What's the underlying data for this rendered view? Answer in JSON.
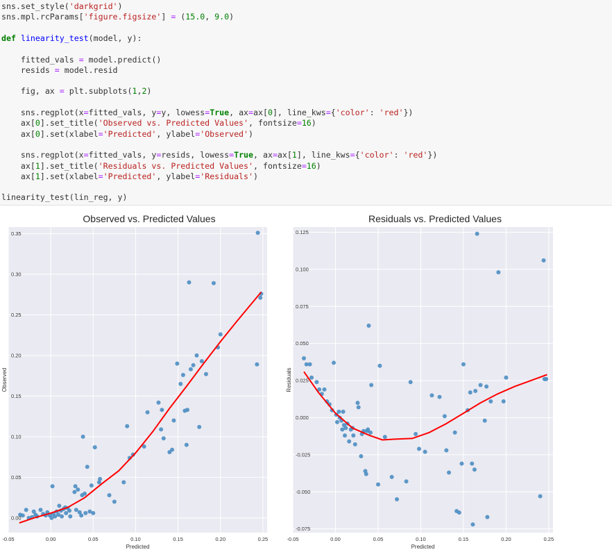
{
  "code_lines": [
    [
      [
        "t",
        "sns.set_style("
      ],
      [
        "s",
        "'darkgrid'"
      ],
      [
        "t",
        ")"
      ]
    ],
    [
      [
        "t",
        "sns.mpl.rcParams["
      ],
      [
        "s",
        "'figure.figsize'"
      ],
      [
        "t",
        "] "
      ],
      [
        "o",
        "="
      ],
      [
        "t",
        " ("
      ],
      [
        "n",
        "15.0"
      ],
      [
        "t",
        ", "
      ],
      [
        "n",
        "9.0"
      ],
      [
        "t",
        ")"
      ]
    ],
    [],
    [
      [
        "k",
        "def"
      ],
      [
        "t",
        " "
      ],
      [
        "f",
        "linearity_test"
      ],
      [
        "t",
        "(model, y):"
      ]
    ],
    [],
    [
      [
        "t",
        "    fitted_vals "
      ],
      [
        "o",
        "="
      ],
      [
        "t",
        " model.predict()"
      ]
    ],
    [
      [
        "t",
        "    resids "
      ],
      [
        "o",
        "="
      ],
      [
        "t",
        " model.resid"
      ]
    ],
    [],
    [
      [
        "t",
        "    fig, ax "
      ],
      [
        "o",
        "="
      ],
      [
        "t",
        " plt.subplots("
      ],
      [
        "n",
        "1"
      ],
      [
        "t",
        ","
      ],
      [
        "n",
        "2"
      ],
      [
        "t",
        ")"
      ]
    ],
    [],
    [
      [
        "t",
        "    sns.regplot(x"
      ],
      [
        "o",
        "="
      ],
      [
        "t",
        "fitted_vals, y"
      ],
      [
        "o",
        "="
      ],
      [
        "t",
        "y, lowess"
      ],
      [
        "o",
        "="
      ],
      [
        "k",
        "True"
      ],
      [
        "t",
        ", ax"
      ],
      [
        "o",
        "="
      ],
      [
        "t",
        "ax["
      ],
      [
        "n",
        "0"
      ],
      [
        "t",
        "], line_kws"
      ],
      [
        "o",
        "="
      ],
      [
        "t",
        "{"
      ],
      [
        "s",
        "'color'"
      ],
      [
        "t",
        ": "
      ],
      [
        "s",
        "'red'"
      ],
      [
        "t",
        "})"
      ]
    ],
    [
      [
        "t",
        "    ax["
      ],
      [
        "n",
        "0"
      ],
      [
        "t",
        "].set_title("
      ],
      [
        "s",
        "'Observed vs. Predicted Values'"
      ],
      [
        "t",
        ", fontsize"
      ],
      [
        "o",
        "="
      ],
      [
        "n",
        "16"
      ],
      [
        "t",
        ")"
      ]
    ],
    [
      [
        "t",
        "    ax["
      ],
      [
        "n",
        "0"
      ],
      [
        "t",
        "].set(xlabel"
      ],
      [
        "o",
        "="
      ],
      [
        "s",
        "'Predicted'"
      ],
      [
        "t",
        ", ylabel"
      ],
      [
        "o",
        "="
      ],
      [
        "s",
        "'Observed'"
      ],
      [
        "t",
        ")"
      ]
    ],
    [],
    [
      [
        "t",
        "    sns.regplot(x"
      ],
      [
        "o",
        "="
      ],
      [
        "t",
        "fitted_vals, y"
      ],
      [
        "o",
        "="
      ],
      [
        "t",
        "resids, lowess"
      ],
      [
        "o",
        "="
      ],
      [
        "k",
        "True"
      ],
      [
        "t",
        ", ax"
      ],
      [
        "o",
        "="
      ],
      [
        "t",
        "ax["
      ],
      [
        "n",
        "1"
      ],
      [
        "t",
        "], line_kws"
      ],
      [
        "o",
        "="
      ],
      [
        "t",
        "{"
      ],
      [
        "s",
        "'color'"
      ],
      [
        "t",
        ": "
      ],
      [
        "s",
        "'red'"
      ],
      [
        "t",
        "})"
      ]
    ],
    [
      [
        "t",
        "    ax["
      ],
      [
        "n",
        "1"
      ],
      [
        "t",
        "].set_title("
      ],
      [
        "s",
        "'Residuals vs. Predicted Values'"
      ],
      [
        "t",
        ", fontsize"
      ],
      [
        "o",
        "="
      ],
      [
        "n",
        "16"
      ],
      [
        "t",
        ")"
      ]
    ],
    [
      [
        "t",
        "    ax["
      ],
      [
        "n",
        "1"
      ],
      [
        "t",
        "].set(xlabel"
      ],
      [
        "o",
        "="
      ],
      [
        "s",
        "'Predicted'"
      ],
      [
        "t",
        ", ylabel"
      ],
      [
        "o",
        "="
      ],
      [
        "s",
        "'Residuals'"
      ],
      [
        "t",
        ")"
      ]
    ],
    [],
    [
      [
        "t",
        "linearity_test(lin_reg, y)"
      ]
    ]
  ],
  "colors": {
    "plot_bg": "#eaeaf2",
    "grid": "#ffffff",
    "points": "#4c8ec2",
    "lowess": "#ff0000",
    "tick_text": "#333333",
    "title_text": "#262626"
  },
  "chart_data": [
    {
      "type": "scatter",
      "title": "Observed vs. Predicted Values",
      "xlabel": "Predicted",
      "ylabel": "Observed",
      "xlim": [
        -0.05,
        0.255
      ],
      "ylim": [
        -0.018,
        0.358
      ],
      "xticks": [
        -0.05,
        0.0,
        0.05,
        0.1,
        0.15,
        0.2,
        0.25
      ],
      "xtick_labels": [
        "-0.05",
        "0.00",
        "0.05",
        "0.10",
        "0.15",
        "0.20",
        "0.25"
      ],
      "yticks": [
        0.0,
        0.05,
        0.1,
        0.15,
        0.2,
        0.25,
        0.3,
        0.35
      ],
      "ytick_labels": [
        "0.00",
        "0.05",
        "0.10",
        "0.15",
        "0.20",
        "0.25",
        "0.30",
        "0.35"
      ],
      "grid": true,
      "points": [
        [
          -0.036,
          0.004
        ],
        [
          -0.033,
          0.003
        ],
        [
          -0.029,
          0.01
        ],
        [
          -0.026,
          0.0
        ],
        [
          -0.022,
          0.001
        ],
        [
          -0.02,
          0.008
        ],
        [
          -0.018,
          0.004
        ],
        [
          -0.016,
          0.002
        ],
        [
          -0.012,
          0.01
        ],
        [
          -0.009,
          0.005
        ],
        [
          -0.006,
          0.003
        ],
        [
          -0.004,
          0.007
        ],
        [
          -0.001,
          0.003
        ],
        [
          0.001,
          0.0
        ],
        [
          0.002,
          0.039
        ],
        [
          0.003,
          0.005
        ],
        [
          0.005,
          0.002
        ],
        [
          0.007,
          0.008
        ],
        [
          0.009,
          0.004
        ],
        [
          0.01,
          0.015
        ],
        [
          0.012,
          0.009
        ],
        [
          0.013,
          0.002
        ],
        [
          0.015,
          0.011
        ],
        [
          0.017,
          0.013
        ],
        [
          0.018,
          0.006
        ],
        [
          0.02,
          0.012
        ],
        [
          0.022,
          0.009
        ],
        [
          0.023,
          0.002
        ],
        [
          0.028,
          0.032
        ],
        [
          0.029,
          0.039
        ],
        [
          0.03,
          0.01
        ],
        [
          0.032,
          0.035
        ],
        [
          0.034,
          0.007
        ],
        [
          0.036,
          0.003
        ],
        [
          0.037,
          0.028
        ],
        [
          0.038,
          0.1
        ],
        [
          0.04,
          0.03
        ],
        [
          0.041,
          0.006
        ],
        [
          0.043,
          0.063
        ],
        [
          0.046,
          0.008
        ],
        [
          0.048,
          0.04
        ],
        [
          0.05,
          0.006
        ],
        [
          0.052,
          0.087
        ],
        [
          0.057,
          0.044
        ],
        [
          0.058,
          0.048
        ],
        [
          0.069,
          0.028
        ],
        [
          0.075,
          0.02
        ],
        [
          0.086,
          0.044
        ],
        [
          0.09,
          0.113
        ],
        [
          0.093,
          0.074
        ],
        [
          0.097,
          0.078
        ],
        [
          0.11,
          0.088
        ],
        [
          0.114,
          0.13
        ],
        [
          0.127,
          0.142
        ],
        [
          0.13,
          0.109
        ],
        [
          0.131,
          0.133
        ],
        [
          0.133,
          0.098
        ],
        [
          0.14,
          0.081
        ],
        [
          0.143,
          0.084
        ],
        [
          0.145,
          0.12
        ],
        [
          0.149,
          0.19
        ],
        [
          0.153,
          0.165
        ],
        [
          0.156,
          0.176
        ],
        [
          0.158,
          0.132
        ],
        [
          0.16,
          0.09
        ],
        [
          0.161,
          0.133
        ],
        [
          0.163,
          0.29
        ],
        [
          0.165,
          0.183
        ],
        [
          0.168,
          0.188
        ],
        [
          0.172,
          0.2
        ],
        [
          0.175,
          0.112
        ],
        [
          0.178,
          0.193
        ],
        [
          0.183,
          0.177
        ],
        [
          0.192,
          0.289
        ],
        [
          0.197,
          0.21
        ],
        [
          0.2,
          0.226
        ],
        [
          0.243,
          0.189
        ],
        [
          0.244,
          0.351
        ],
        [
          0.247,
          0.271
        ],
        [
          0.248,
          0.276
        ]
      ],
      "lowess": [
        [
          -0.037,
          -0.006
        ],
        [
          -0.02,
          0.0
        ],
        [
          0.0,
          0.006
        ],
        [
          0.02,
          0.013
        ],
        [
          0.04,
          0.025
        ],
        [
          0.06,
          0.042
        ],
        [
          0.08,
          0.058
        ],
        [
          0.1,
          0.08
        ],
        [
          0.12,
          0.106
        ],
        [
          0.14,
          0.135
        ],
        [
          0.16,
          0.162
        ],
        [
          0.18,
          0.19
        ],
        [
          0.2,
          0.217
        ],
        [
          0.22,
          0.243
        ],
        [
          0.248,
          0.278
        ]
      ]
    },
    {
      "type": "scatter",
      "title": "Residuals vs. Predicted Values",
      "xlabel": "Predicted",
      "ylabel": "Residuals",
      "xlim": [
        -0.05,
        0.255
      ],
      "ylim": [
        -0.0775,
        0.1285
      ],
      "xticks": [
        -0.05,
        0.0,
        0.05,
        0.1,
        0.15,
        0.2,
        0.25
      ],
      "xtick_labels": [
        "-0.05",
        "0.00",
        "0.05",
        "0.10",
        "0.15",
        "0.20",
        "0.25"
      ],
      "yticks": [
        -0.075,
        -0.05,
        -0.025,
        0.0,
        0.025,
        0.05,
        0.075,
        0.1,
        0.125
      ],
      "ytick_labels": [
        "-0.075",
        "-0.050",
        "-0.025",
        "0.000",
        "0.025",
        "0.050",
        "0.075",
        "0.100",
        "0.125"
      ],
      "grid": true,
      "points": [
        [
          -0.037,
          0.04
        ],
        [
          -0.034,
          0.036
        ],
        [
          -0.03,
          0.036
        ],
        [
          -0.028,
          0.027
        ],
        [
          -0.022,
          0.024
        ],
        [
          -0.019,
          0.019
        ],
        [
          -0.016,
          0.016
        ],
        [
          -0.013,
          0.019
        ],
        [
          -0.01,
          0.011
        ],
        [
          -0.007,
          0.009
        ],
        [
          -0.004,
          0.005
        ],
        [
          -0.002,
          0.037
        ],
        [
          0.001,
          0.002
        ],
        [
          0.002,
          -0.003
        ],
        [
          0.004,
          0.004
        ],
        [
          0.005,
          0.0
        ],
        [
          0.007,
          -0.002
        ],
        [
          0.008,
          -0.008
        ],
        [
          0.009,
          0.004
        ],
        [
          0.01,
          -0.005
        ],
        [
          0.011,
          -0.012
        ],
        [
          0.012,
          -0.007
        ],
        [
          0.014,
          -0.004
        ],
        [
          0.016,
          -0.016
        ],
        [
          0.018,
          -0.008
        ],
        [
          0.02,
          -0.007
        ],
        [
          0.021,
          -0.012
        ],
        [
          0.023,
          -0.018
        ],
        [
          0.026,
          0.01
        ],
        [
          0.027,
          0.007
        ],
        [
          0.03,
          -0.026
        ],
        [
          0.031,
          -0.011
        ],
        [
          0.033,
          -0.009
        ],
        [
          0.035,
          -0.036
        ],
        [
          0.036,
          -0.038
        ],
        [
          0.037,
          -0.009
        ],
        [
          0.038,
          -0.008
        ],
        [
          0.039,
          0.062
        ],
        [
          0.041,
          -0.01
        ],
        [
          0.042,
          0.022
        ],
        [
          0.05,
          -0.045
        ],
        [
          0.052,
          0.035
        ],
        [
          0.058,
          -0.013
        ],
        [
          0.066,
          -0.04
        ],
        [
          0.072,
          -0.055
        ],
        [
          0.083,
          -0.043
        ],
        [
          0.088,
          0.024
        ],
        [
          0.094,
          -0.011
        ],
        [
          0.098,
          -0.021
        ],
        [
          0.105,
          -0.023
        ],
        [
          0.113,
          0.015
        ],
        [
          0.122,
          0.014
        ],
        [
          0.128,
          0.001
        ],
        [
          0.13,
          -0.022
        ],
        [
          0.133,
          -0.037
        ],
        [
          0.14,
          -0.01
        ],
        [
          0.142,
          -0.063
        ],
        [
          0.145,
          -0.064
        ],
        [
          0.148,
          -0.031
        ],
        [
          0.15,
          0.036
        ],
        [
          0.155,
          0.005
        ],
        [
          0.158,
          0.017
        ],
        [
          0.16,
          -0.031
        ],
        [
          0.161,
          -0.072
        ],
        [
          0.163,
          -0.035
        ],
        [
          0.164,
          0.018
        ],
        [
          0.166,
          0.124
        ],
        [
          0.17,
          0.022
        ],
        [
          0.175,
          -0.002
        ],
        [
          0.177,
          0.021
        ],
        [
          0.178,
          -0.067
        ],
        [
          0.182,
          0.011
        ],
        [
          0.191,
          0.098
        ],
        [
          0.197,
          0.011
        ],
        [
          0.2,
          0.027
        ],
        [
          0.24,
          -0.053
        ],
        [
          0.244,
          0.106
        ],
        [
          0.245,
          0.026
        ],
        [
          0.247,
          0.026
        ]
      ],
      "lowess": [
        [
          -0.037,
          0.031
        ],
        [
          -0.02,
          0.017
        ],
        [
          0.0,
          0.003
        ],
        [
          0.02,
          -0.007
        ],
        [
          0.04,
          -0.012
        ],
        [
          0.055,
          -0.015
        ],
        [
          0.07,
          -0.0145
        ],
        [
          0.09,
          -0.014
        ],
        [
          0.11,
          -0.01
        ],
        [
          0.13,
          -0.004
        ],
        [
          0.15,
          0.003
        ],
        [
          0.17,
          0.01
        ],
        [
          0.19,
          0.016
        ],
        [
          0.21,
          0.021
        ],
        [
          0.248,
          0.029
        ]
      ]
    }
  ]
}
